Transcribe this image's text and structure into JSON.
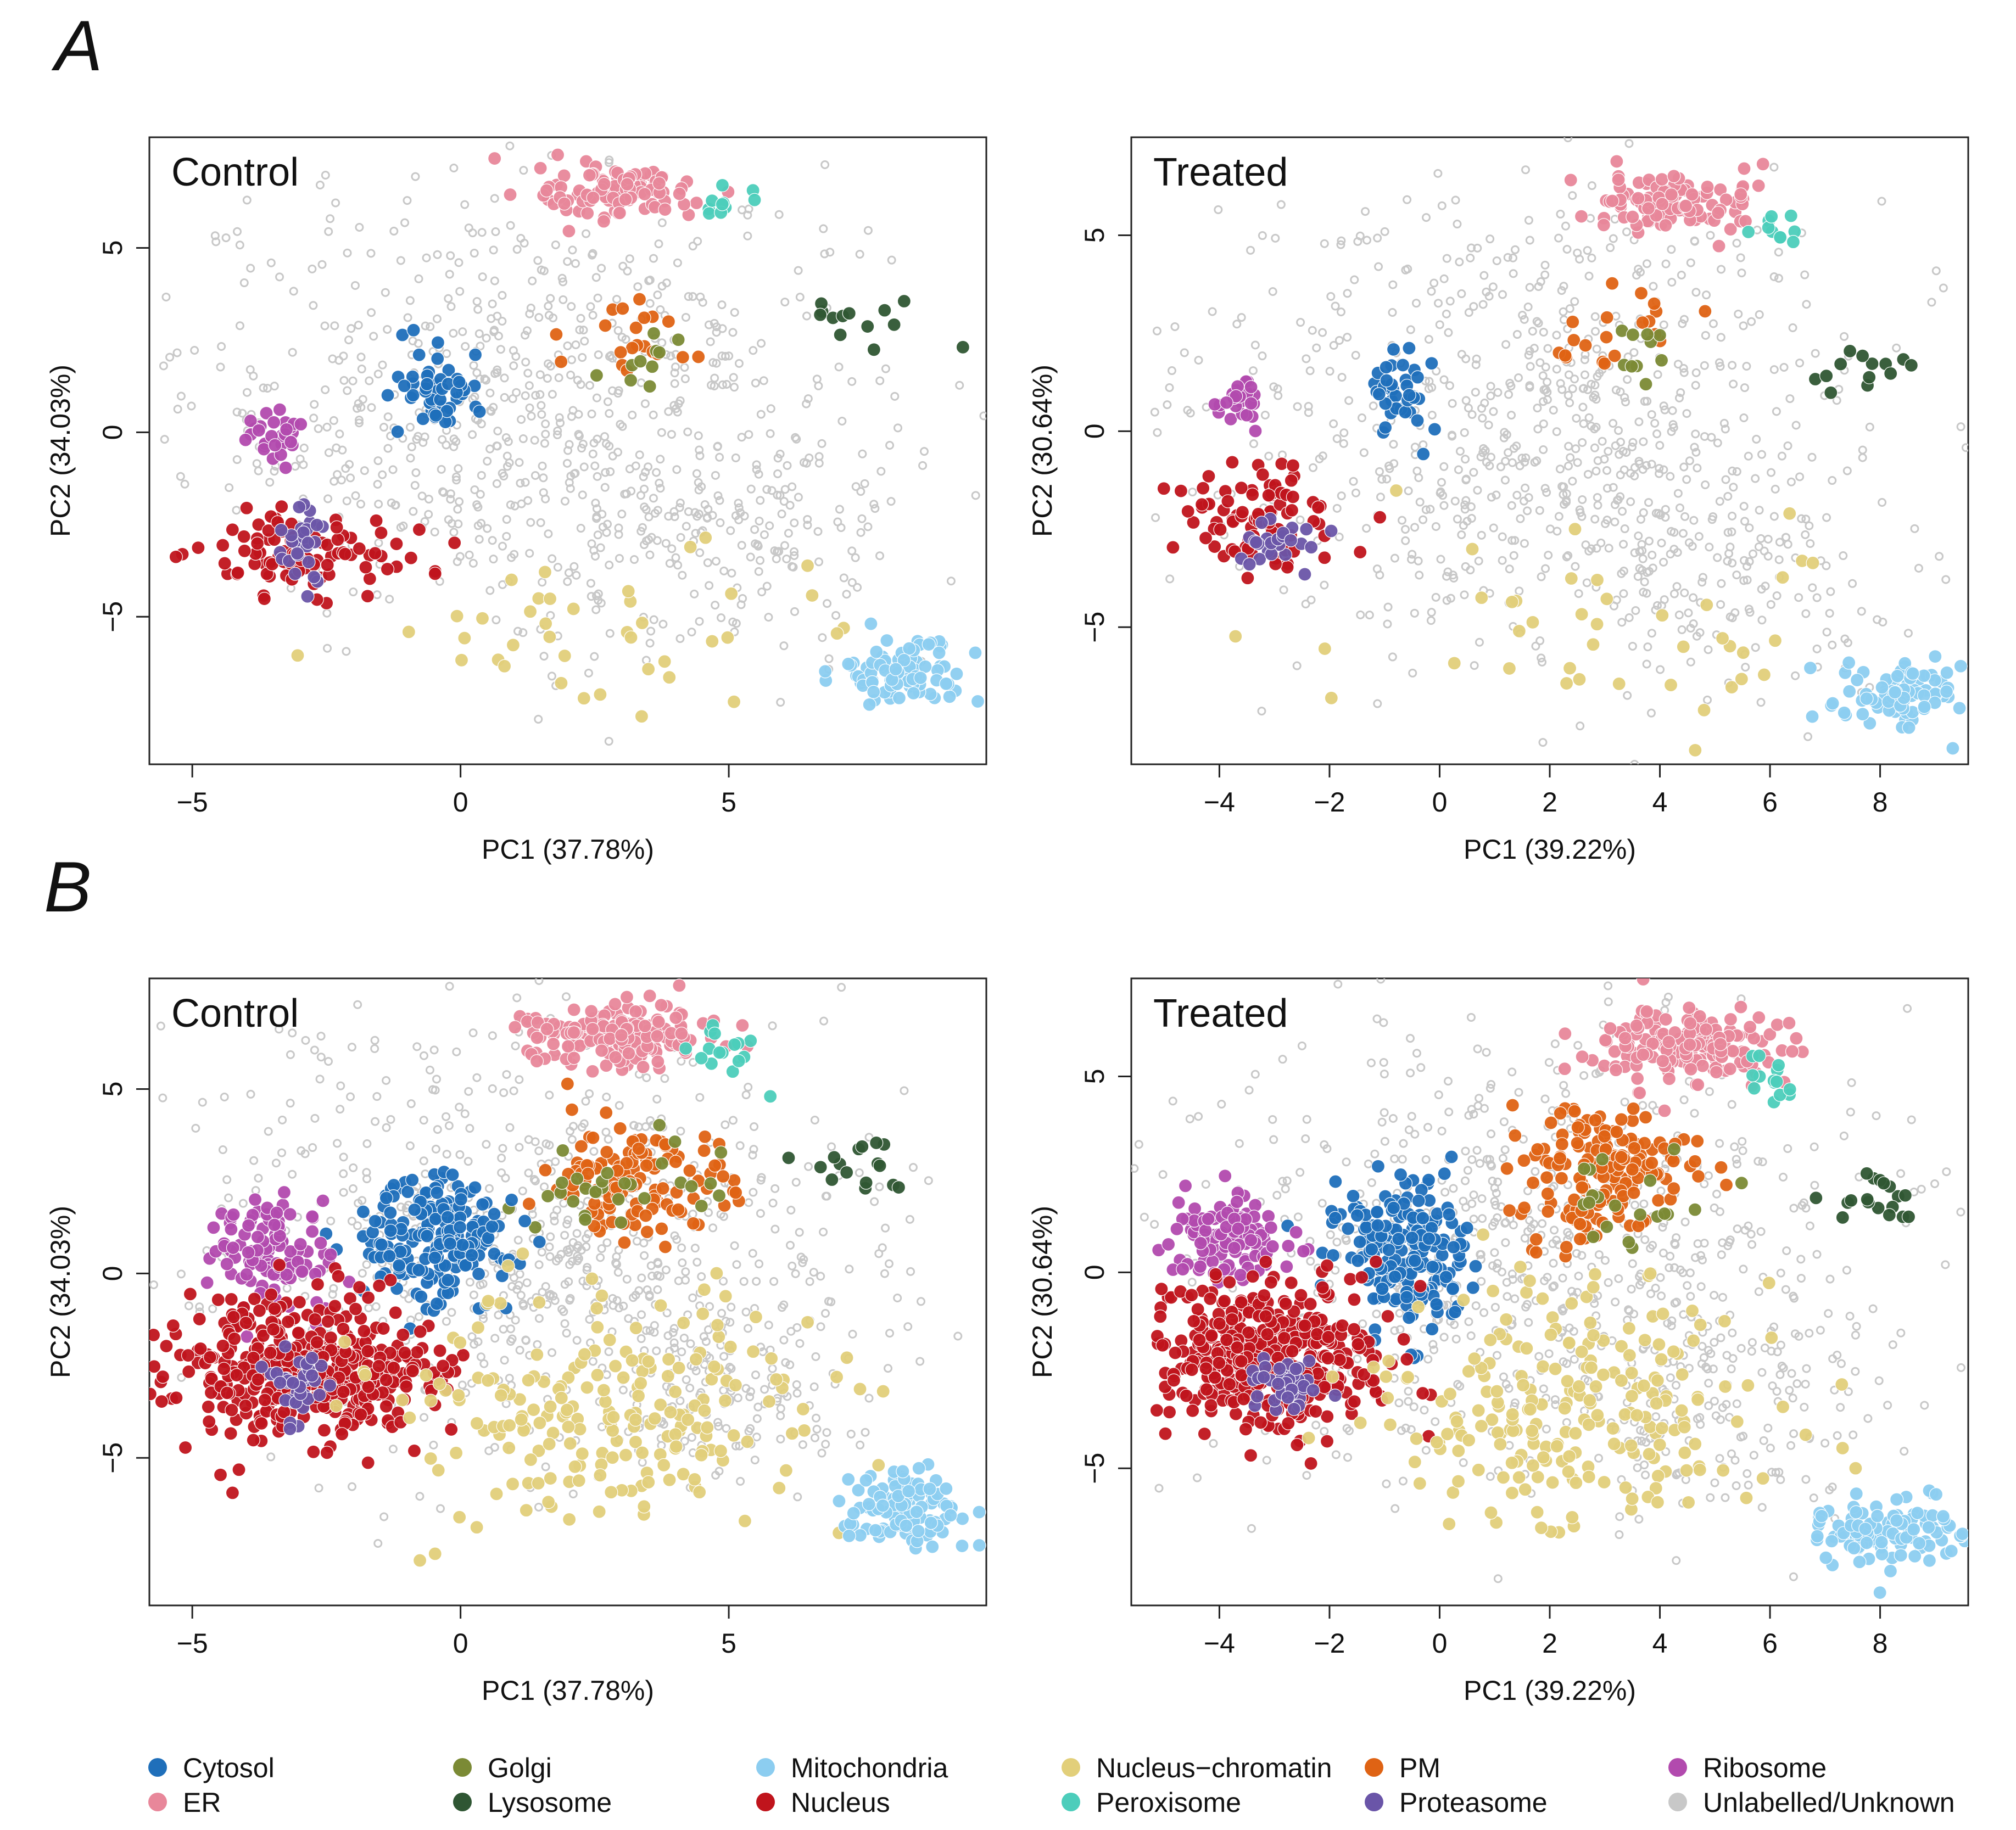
{
  "panels": [
    {
      "letter": "A"
    },
    {
      "letter": "B"
    }
  ],
  "colors": {
    "Cytosol": "#1f6fba",
    "ER": "#e8879a",
    "Golgi": "#7b8a35",
    "Lysosome": "#2f5633",
    "Mitochondria": "#8ccdf0",
    "Nucleus": "#c0141c",
    "Nucleus-chromatin": "#e2cf7a",
    "Peroxisome": "#4ccdbb",
    "PM": "#df6314",
    "Proteasome": "#6a55a8",
    "Ribosome": "#b24aae",
    "Unlabelled/Unknown": "#c8c8c8"
  },
  "chart_data": [
    {
      "type": "scatter",
      "panel": "A",
      "title": "Control",
      "xlabel": "PC1 (37.78%)",
      "ylabel": "PC2 (34.03%)",
      "xlim": [
        -5.8,
        9.8
      ],
      "ylim": [
        -9.0,
        8.0
      ],
      "xticks": [
        -5,
        0,
        5
      ],
      "xtick_labels": [
        "−5",
        "0",
        "5"
      ],
      "yticks": [
        -5,
        0,
        5
      ],
      "ytick_labels": [
        "−5",
        "0",
        "5"
      ],
      "marker_mode": "known",
      "clusters": [
        {
          "class": "Unlabelled/Unknown",
          "n": 700,
          "cx": 1.3,
          "cy": 0.8,
          "sx": 3.2,
          "sy": 3.0
        },
        {
          "class": "Unlabelled/Unknown",
          "n": 140,
          "cx": 5.0,
          "cy": -3.0,
          "sx": 1.6,
          "sy": 1.6
        },
        {
          "class": "ER",
          "n": 110,
          "cx": 3.0,
          "cy": 6.5,
          "sx": 0.75,
          "sy": 0.35
        },
        {
          "class": "Peroxisome",
          "n": 10,
          "cx": 5.0,
          "cy": 6.1,
          "sx": 0.3,
          "sy": 0.25
        },
        {
          "class": "Lysosome",
          "n": 13,
          "cx": 7.5,
          "cy": 3.0,
          "sx": 0.55,
          "sy": 0.4
        },
        {
          "class": "PM",
          "n": 20,
          "cx": 3.2,
          "cy": 2.6,
          "sx": 0.6,
          "sy": 0.5
        },
        {
          "class": "Golgi",
          "n": 10,
          "cx": 3.4,
          "cy": 2.0,
          "sx": 0.5,
          "sy": 0.5
        },
        {
          "class": "Cytosol",
          "n": 50,
          "cx": -0.4,
          "cy": 1.2,
          "sx": 0.4,
          "sy": 0.6
        },
        {
          "class": "Ribosome",
          "n": 30,
          "cx": -3.5,
          "cy": 0.0,
          "sx": 0.3,
          "sy": 0.35
        },
        {
          "class": "Nucleus",
          "n": 90,
          "cx": -2.8,
          "cy": -3.2,
          "sx": 1.1,
          "sy": 0.6
        },
        {
          "class": "Proteasome",
          "n": 30,
          "cx": -3.0,
          "cy": -3.2,
          "sx": 0.25,
          "sy": 0.55
        },
        {
          "class": "Nucleus-chromatin",
          "n": 40,
          "cx": 3.0,
          "cy": -5.5,
          "sx": 2.5,
          "sy": 1.2
        },
        {
          "class": "Mitochondria",
          "n": 90,
          "cx": 8.3,
          "cy": -6.5,
          "sx": 0.6,
          "sy": 0.4
        }
      ]
    },
    {
      "type": "scatter",
      "panel": "A",
      "title": "Treated",
      "xlabel": "PC1 (39.22%)",
      "ylabel": "PC2 (30.64%)",
      "xlim": [
        -5.6,
        9.6
      ],
      "ylim": [
        -8.5,
        7.5
      ],
      "xticks": [
        -4,
        -2,
        0,
        2,
        4,
        6,
        8
      ],
      "xtick_labels": [
        "−4",
        "−2",
        "0",
        "2",
        "4",
        "6",
        "8"
      ],
      "yticks": [
        -5,
        0,
        5
      ],
      "ytick_labels": [
        "−5",
        "0",
        "5"
      ],
      "marker_mode": "known",
      "clusters": [
        {
          "class": "Unlabelled/Unknown",
          "n": 700,
          "cx": 1.5,
          "cy": 0.3,
          "sx": 3.0,
          "sy": 3.0
        },
        {
          "class": "Unlabelled/Unknown",
          "n": 140,
          "cx": 5.0,
          "cy": -3.5,
          "sx": 1.6,
          "sy": 1.6
        },
        {
          "class": "ER",
          "n": 110,
          "cx": 4.3,
          "cy": 5.8,
          "sx": 0.8,
          "sy": 0.4
        },
        {
          "class": "Peroxisome",
          "n": 10,
          "cx": 6.1,
          "cy": 5.1,
          "sx": 0.25,
          "sy": 0.25
        },
        {
          "class": "Lysosome",
          "n": 13,
          "cx": 7.8,
          "cy": 1.7,
          "sx": 0.5,
          "sy": 0.4
        },
        {
          "class": "PM",
          "n": 20,
          "cx": 3.2,
          "cy": 2.5,
          "sx": 0.7,
          "sy": 0.6
        },
        {
          "class": "Golgi",
          "n": 10,
          "cx": 3.5,
          "cy": 2.0,
          "sx": 0.5,
          "sy": 0.5
        },
        {
          "class": "Cytosol",
          "n": 40,
          "cx": -0.6,
          "cy": 0.8,
          "sx": 0.35,
          "sy": 0.65
        },
        {
          "class": "Ribosome",
          "n": 25,
          "cx": -3.6,
          "cy": 0.7,
          "sx": 0.25,
          "sy": 0.3
        },
        {
          "class": "Nucleus",
          "n": 90,
          "cx": -3.3,
          "cy": -2.2,
          "sx": 0.8,
          "sy": 0.7
        },
        {
          "class": "Proteasome",
          "n": 25,
          "cx": -2.8,
          "cy": -2.8,
          "sx": 0.3,
          "sy": 0.35
        },
        {
          "class": "Nucleus-chromatin",
          "n": 40,
          "cx": 3.0,
          "cy": -5.0,
          "sx": 2.5,
          "sy": 1.3
        },
        {
          "class": "Mitochondria",
          "n": 90,
          "cx": 8.3,
          "cy": -6.7,
          "sx": 0.7,
          "sy": 0.45
        }
      ]
    },
    {
      "type": "scatter",
      "panel": "B",
      "title": "Control",
      "xlabel": "PC1 (37.78%)",
      "ylabel": "PC2 (34.03%)",
      "xlim": [
        -5.8,
        9.8
      ],
      "ylim": [
        -9.0,
        8.0
      ],
      "xticks": [
        -5,
        0,
        5
      ],
      "xtick_labels": [
        "−5",
        "0",
        "5"
      ],
      "yticks": [
        -5,
        0,
        5
      ],
      "ytick_labels": [
        "−5",
        "0",
        "5"
      ],
      "marker_mode": "predicted",
      "clusters": [
        {
          "class": "Unlabelled/Unknown",
          "n": 700,
          "cx": 1.3,
          "cy": 0.8,
          "sx": 3.2,
          "sy": 3.0
        },
        {
          "class": "Unlabelled/Unknown",
          "n": 140,
          "cx": 5.0,
          "cy": -3.0,
          "sx": 1.6,
          "sy": 1.6
        },
        {
          "class": "ER",
          "n": 180,
          "cx": 2.9,
          "cy": 6.5,
          "sx": 0.85,
          "sy": 0.4
        },
        {
          "class": "Peroxisome",
          "n": 16,
          "cx": 5.0,
          "cy": 5.9,
          "sx": 0.35,
          "sy": 0.35
        },
        {
          "class": "Lysosome",
          "n": 16,
          "cx": 7.4,
          "cy": 3.0,
          "sx": 0.6,
          "sy": 0.45
        },
        {
          "class": "PM",
          "n": 120,
          "cx": 3.2,
          "cy": 2.6,
          "sx": 0.9,
          "sy": 0.8
        },
        {
          "class": "Golgi",
          "n": 30,
          "cx": 3.0,
          "cy": 2.3,
          "sx": 0.9,
          "sy": 0.7
        },
        {
          "class": "Cytosol",
          "n": 200,
          "cx": -0.4,
          "cy": 0.9,
          "sx": 0.7,
          "sy": 0.9
        },
        {
          "class": "Ribosome",
          "n": 110,
          "cx": -3.5,
          "cy": 0.5,
          "sx": 0.5,
          "sy": 0.8
        },
        {
          "class": "Nucleus",
          "n": 420,
          "cx": -2.8,
          "cy": -2.6,
          "sx": 1.2,
          "sy": 1.0
        },
        {
          "class": "Proteasome",
          "n": 40,
          "cx": -3.0,
          "cy": -3.1,
          "sx": 0.3,
          "sy": 0.5
        },
        {
          "class": "Nucleus-chromatin",
          "n": 210,
          "cx": 2.7,
          "cy": -3.8,
          "sx": 2.0,
          "sy": 1.6
        },
        {
          "class": "Mitochondria",
          "n": 110,
          "cx": 8.3,
          "cy": -6.4,
          "sx": 0.6,
          "sy": 0.45
        }
      ]
    },
    {
      "type": "scatter",
      "panel": "B",
      "title": "Treated",
      "xlabel": "PC1 (39.22%)",
      "ylabel": "PC2 (30.64%)",
      "xlim": [
        -5.6,
        9.6
      ],
      "ylim": [
        -8.5,
        7.5
      ],
      "xticks": [
        -4,
        -2,
        0,
        2,
        4,
        6,
        8
      ],
      "xtick_labels": [
        "−4",
        "−2",
        "0",
        "2",
        "4",
        "6",
        "8"
      ],
      "yticks": [
        -5,
        0,
        5
      ],
      "ytick_labels": [
        "−5",
        "0",
        "5"
      ],
      "marker_mode": "predicted",
      "clusters": [
        {
          "class": "Unlabelled/Unknown",
          "n": 700,
          "cx": 1.5,
          "cy": 0.3,
          "sx": 3.0,
          "sy": 3.0
        },
        {
          "class": "Unlabelled/Unknown",
          "n": 140,
          "cx": 5.0,
          "cy": -3.5,
          "sx": 1.6,
          "sy": 1.6
        },
        {
          "class": "ER",
          "n": 180,
          "cx": 4.3,
          "cy": 5.8,
          "sx": 0.9,
          "sy": 0.45
        },
        {
          "class": "Peroxisome",
          "n": 14,
          "cx": 6.1,
          "cy": 5.0,
          "sx": 0.25,
          "sy": 0.3
        },
        {
          "class": "Lysosome",
          "n": 18,
          "cx": 7.8,
          "cy": 1.8,
          "sx": 0.45,
          "sy": 0.4
        },
        {
          "class": "PM",
          "n": 170,
          "cx": 3.0,
          "cy": 2.5,
          "sx": 0.8,
          "sy": 0.9
        },
        {
          "class": "Golgi",
          "n": 20,
          "cx": 3.5,
          "cy": 1.8,
          "sx": 0.8,
          "sy": 0.6
        },
        {
          "class": "Cytosol",
          "n": 200,
          "cx": -0.6,
          "cy": 0.5,
          "sx": 0.6,
          "sy": 1.0
        },
        {
          "class": "Ribosome",
          "n": 110,
          "cx": -3.8,
          "cy": 0.9,
          "sx": 0.6,
          "sy": 0.6
        },
        {
          "class": "Nucleus",
          "n": 420,
          "cx": -3.1,
          "cy": -2.1,
          "sx": 1.0,
          "sy": 0.9
        },
        {
          "class": "Proteasome",
          "n": 40,
          "cx": -2.8,
          "cy": -2.8,
          "sx": 0.3,
          "sy": 0.4
        },
        {
          "class": "Nucleus-chromatin",
          "n": 220,
          "cx": 2.3,
          "cy": -3.6,
          "sx": 1.8,
          "sy": 1.5
        },
        {
          "class": "Mitochondria",
          "n": 110,
          "cx": 8.3,
          "cy": -6.6,
          "sx": 0.7,
          "sy": 0.45
        }
      ]
    }
  ],
  "legend": {
    "items": [
      {
        "label": "Cytosol",
        "class": "Cytosol"
      },
      {
        "label": "ER",
        "class": "ER"
      },
      {
        "label": "Golgi",
        "class": "Golgi"
      },
      {
        "label": "Lysosome",
        "class": "Lysosome"
      },
      {
        "label": "Mitochondria",
        "class": "Mitochondria"
      },
      {
        "label": "Nucleus",
        "class": "Nucleus"
      },
      {
        "label": "Nucleus−chromatin",
        "class": "Nucleus-chromatin"
      },
      {
        "label": "Peroxisome",
        "class": "Peroxisome"
      },
      {
        "label": "PM",
        "class": "PM"
      },
      {
        "label": "Proteasome",
        "class": "Proteasome"
      },
      {
        "label": "Ribosome",
        "class": "Ribosome"
      },
      {
        "label": "Unlabelled/Unknown",
        "class": "Unlabelled/Unknown"
      }
    ]
  }
}
